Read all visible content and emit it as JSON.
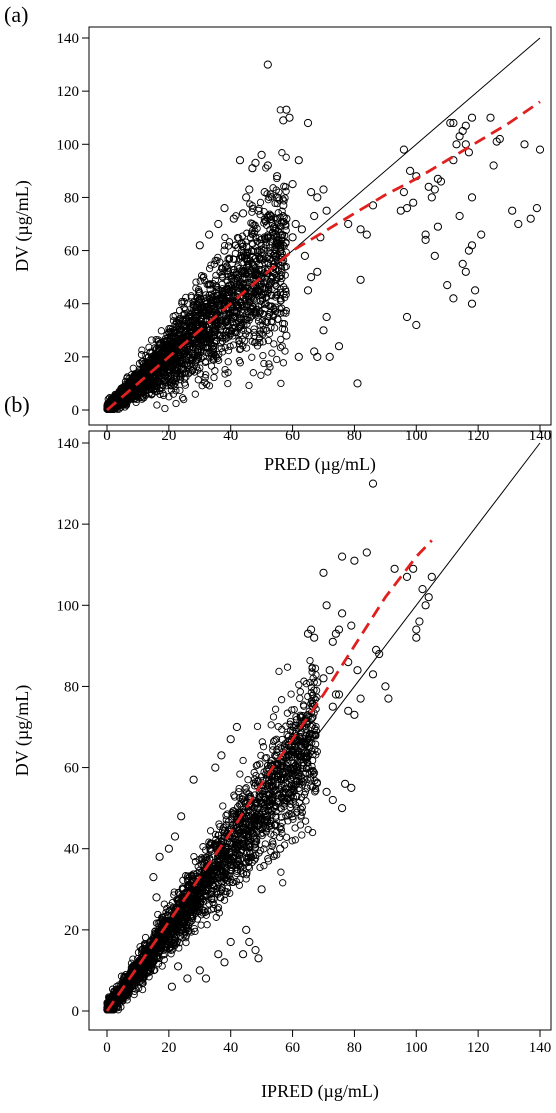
{
  "chart_data": [
    {
      "panel_label": "(a)",
      "type": "scatter",
      "title": "",
      "xlabel": "PRED (µg/mL)",
      "ylabel": "DV (µg/mL)",
      "xlim": [
        0,
        140
      ],
      "ylim": [
        0,
        140
      ],
      "xticks": [
        "0",
        "20",
        "40",
        "60",
        "80",
        "100",
        "120",
        "140"
      ],
      "yticks": [
        "0",
        "20",
        "40",
        "60",
        "80",
        "100",
        "120",
        "140"
      ],
      "grid": false,
      "reference_line": {
        "name": "identity",
        "x": [
          0,
          140
        ],
        "y": [
          0,
          140
        ],
        "color": "#000000"
      },
      "trend_line": {
        "name": "loess",
        "style": "dashed",
        "color": "#e0201e",
        "x": [
          0,
          10,
          20,
          30,
          40,
          50,
          60,
          70,
          80,
          90,
          100,
          110,
          120,
          130,
          140
        ],
        "y": [
          0,
          10,
          20,
          30,
          40,
          50,
          60,
          67,
          74,
          81,
          87,
          94,
          101,
          108,
          116
        ]
      },
      "points": [
        [
          52,
          130
        ],
        [
          58,
          113
        ],
        [
          59,
          110
        ],
        [
          57,
          109
        ],
        [
          65,
          108
        ],
        [
          50,
          96
        ],
        [
          62,
          94
        ],
        [
          43,
          94
        ],
        [
          48,
          93
        ],
        [
          52,
          92
        ],
        [
          47,
          91
        ],
        [
          55,
          88
        ],
        [
          60,
          85
        ],
        [
          46,
          83
        ],
        [
          45,
          80
        ],
        [
          51,
          82
        ],
        [
          55,
          80
        ],
        [
          57,
          77
        ],
        [
          49,
          75
        ],
        [
          53,
          73
        ],
        [
          58,
          72
        ],
        [
          61,
          70
        ],
        [
          63,
          68
        ],
        [
          60,
          65
        ],
        [
          56,
          62
        ],
        [
          44,
          74
        ],
        [
          38,
          76
        ],
        [
          41,
          72
        ],
        [
          36,
          70
        ],
        [
          33,
          66
        ],
        [
          30,
          62
        ],
        [
          38,
          60
        ],
        [
          66,
          82
        ],
        [
          68,
          80
        ],
        [
          70,
          83
        ],
        [
          67,
          73
        ],
        [
          71,
          75
        ],
        [
          69,
          65
        ],
        [
          68,
          52
        ],
        [
          66,
          50
        ],
        [
          65,
          45
        ],
        [
          70,
          30
        ],
        [
          67,
          22
        ],
        [
          68,
          20
        ],
        [
          72,
          20
        ],
        [
          75,
          24
        ],
        [
          71,
          35
        ],
        [
          81,
          10
        ],
        [
          78,
          70
        ],
        [
          82,
          68
        ],
        [
          84,
          66
        ],
        [
          86,
          77
        ],
        [
          82,
          49
        ],
        [
          96,
          98
        ],
        [
          98,
          90
        ],
        [
          96,
          82
        ],
        [
          97,
          76
        ],
        [
          95,
          75
        ],
        [
          99,
          78
        ],
        [
          100,
          88
        ],
        [
          103,
          66
        ],
        [
          104,
          84
        ],
        [
          106,
          83
        ],
        [
          107,
          87
        ],
        [
          108,
          86
        ],
        [
          105,
          80
        ],
        [
          107,
          69
        ],
        [
          106,
          58
        ],
        [
          110,
          47
        ],
        [
          103,
          64
        ],
        [
          111,
          108
        ],
        [
          112,
          108
        ],
        [
          113,
          100
        ],
        [
          114,
          103
        ],
        [
          115,
          105
        ],
        [
          116,
          107
        ],
        [
          116,
          100
        ],
        [
          117,
          97
        ],
        [
          118,
          110
        ],
        [
          112,
          94
        ],
        [
          114,
          73
        ],
        [
          115,
          55
        ],
        [
          116,
          52
        ],
        [
          117,
          60
        ],
        [
          119,
          45
        ],
        [
          121,
          66
        ],
        [
          118,
          40
        ],
        [
          112,
          42
        ],
        [
          118,
          62
        ],
        [
          124,
          110
        ],
        [
          126,
          101
        ],
        [
          127,
          102
        ],
        [
          131,
          75
        ],
        [
          133,
          70
        ],
        [
          135,
          100
        ],
        [
          137,
          72
        ],
        [
          139,
          76
        ],
        [
          140,
          98
        ],
        [
          97,
          35
        ],
        [
          100,
          32
        ],
        [
          125,
          92
        ],
        [
          118,
          80
        ],
        [
          58,
          28
        ],
        [
          62,
          20
        ],
        [
          64,
          58
        ]
      ]
    },
    {
      "panel_label": "(b)",
      "type": "scatter",
      "title": "",
      "xlabel": "IPRED (µg/mL)",
      "ylabel": "DV (µg/mL)",
      "xlim": [
        0,
        140
      ],
      "ylim": [
        0,
        140
      ],
      "xticks": [
        "0",
        "20",
        "40",
        "60",
        "80",
        "100",
        "120",
        "140"
      ],
      "yticks": [
        "0",
        "20",
        "40",
        "60",
        "80",
        "100",
        "120",
        "140"
      ],
      "grid": false,
      "reference_line": {
        "name": "identity",
        "x": [
          0,
          140
        ],
        "y": [
          0,
          140
        ],
        "color": "#000000"
      },
      "trend_line": {
        "name": "loess",
        "style": "dashed",
        "color": "#e0201e",
        "x": [
          0,
          10,
          20,
          30,
          40,
          50,
          60,
          70,
          80,
          90,
          100,
          105
        ],
        "y": [
          0,
          11,
          22,
          33,
          44,
          56,
          67,
          78,
          90,
          102,
          112,
          116
        ]
      },
      "points": [
        [
          86,
          130
        ],
        [
          84,
          113
        ],
        [
          80,
          111
        ],
        [
          76,
          112
        ],
        [
          93,
          109
        ],
        [
          99,
          109
        ],
        [
          97,
          107
        ],
        [
          105,
          107
        ],
        [
          102,
          104
        ],
        [
          104,
          102
        ],
        [
          103,
          100
        ],
        [
          101,
          96
        ],
        [
          100,
          94
        ],
        [
          100,
          92
        ],
        [
          88,
          88
        ],
        [
          87,
          89
        ],
        [
          86,
          83
        ],
        [
          91,
          77
        ],
        [
          90,
          80
        ],
        [
          70,
          108
        ],
        [
          71,
          100
        ],
        [
          76,
          98
        ],
        [
          79,
          95
        ],
        [
          75,
          94
        ],
        [
          74,
          93
        ],
        [
          73,
          91
        ],
        [
          65,
          93
        ],
        [
          67,
          92
        ],
        [
          66,
          94
        ],
        [
          70,
          82
        ],
        [
          72,
          84
        ],
        [
          68,
          81
        ],
        [
          73,
          75
        ],
        [
          74,
          78
        ],
        [
          78,
          74
        ],
        [
          80,
          73
        ],
        [
          82,
          77
        ],
        [
          81,
          84
        ],
        [
          78,
          86
        ],
        [
          75,
          78
        ],
        [
          71,
          54
        ],
        [
          73,
          52
        ],
        [
          76,
          50
        ],
        [
          79,
          55
        ],
        [
          77,
          56
        ],
        [
          28,
          57
        ],
        [
          24,
          48
        ],
        [
          22,
          43
        ],
        [
          20,
          40
        ],
        [
          17,
          38
        ],
        [
          15,
          33
        ],
        [
          16,
          28
        ],
        [
          45,
          20
        ],
        [
          46,
          17
        ],
        [
          48,
          15
        ],
        [
          44,
          14
        ],
        [
          49,
          13
        ],
        [
          40,
          17
        ],
        [
          38,
          12
        ],
        [
          36,
          14
        ],
        [
          30,
          10
        ],
        [
          32,
          8
        ],
        [
          26,
          8
        ],
        [
          21,
          6
        ],
        [
          23,
          11
        ],
        [
          50,
          30
        ],
        [
          56,
          40
        ],
        [
          60,
          48
        ],
        [
          62,
          55
        ],
        [
          58,
          52
        ],
        [
          64,
          66
        ],
        [
          66,
          70
        ],
        [
          35,
          60
        ],
        [
          37,
          63
        ],
        [
          40,
          67
        ],
        [
          42,
          70
        ]
      ]
    }
  ]
}
